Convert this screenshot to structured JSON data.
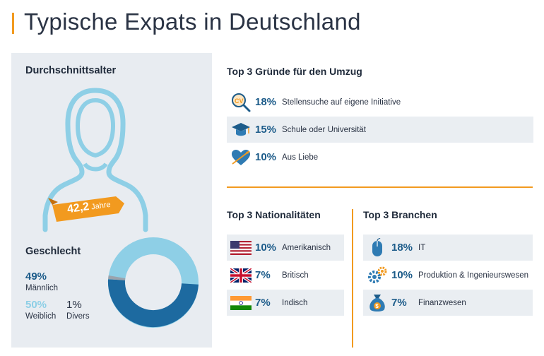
{
  "title": "Typische Expats in Deutschland",
  "age": {
    "heading": "Durchschnittsalter",
    "value": "42,2",
    "unit": "Jahre"
  },
  "gender": {
    "heading": "Geschlecht",
    "male_pct": "49%",
    "male_label": "Männlich",
    "female_pct": "50%",
    "female_label": "Weiblich",
    "diverse_pct": "1%",
    "diverse_label": "Divers",
    "colors": {
      "male": "#1d6aa0",
      "female": "#8ecfe6",
      "diverse": "#9aa3ad"
    }
  },
  "reasons": {
    "heading": "Top 3 Gründe für den Umzug",
    "items": [
      {
        "pct": "18%",
        "label": "Stellensuche auf eigene Initiative",
        "icon": "cv-magnifier-icon"
      },
      {
        "pct": "15%",
        "label": "Schule oder Universität",
        "icon": "graduation-cap-icon"
      },
      {
        "pct": "10%",
        "label": "Aus Liebe",
        "icon": "heart-arrow-icon"
      }
    ]
  },
  "nationalities": {
    "heading": "Top 3 Nationalitäten",
    "items": [
      {
        "pct": "10%",
        "label": "Amerikanisch",
        "icon": "us-flag-icon"
      },
      {
        "pct": "7%",
        "label": "Britisch",
        "icon": "uk-flag-icon"
      },
      {
        "pct": "7%",
        "label": "Indisch",
        "icon": "india-flag-icon"
      }
    ]
  },
  "industries": {
    "heading": "Top 3 Branchen",
    "items": [
      {
        "pct": "18%",
        "label": "IT",
        "icon": "computer-mouse-icon"
      },
      {
        "pct": "10%",
        "label": "Produktion & Ingenieurswesen",
        "icon": "gears-icon"
      },
      {
        "pct": "7%",
        "label": "Finanzwesen",
        "icon": "money-bag-icon"
      }
    ]
  },
  "accent_color": "#f29a1f"
}
